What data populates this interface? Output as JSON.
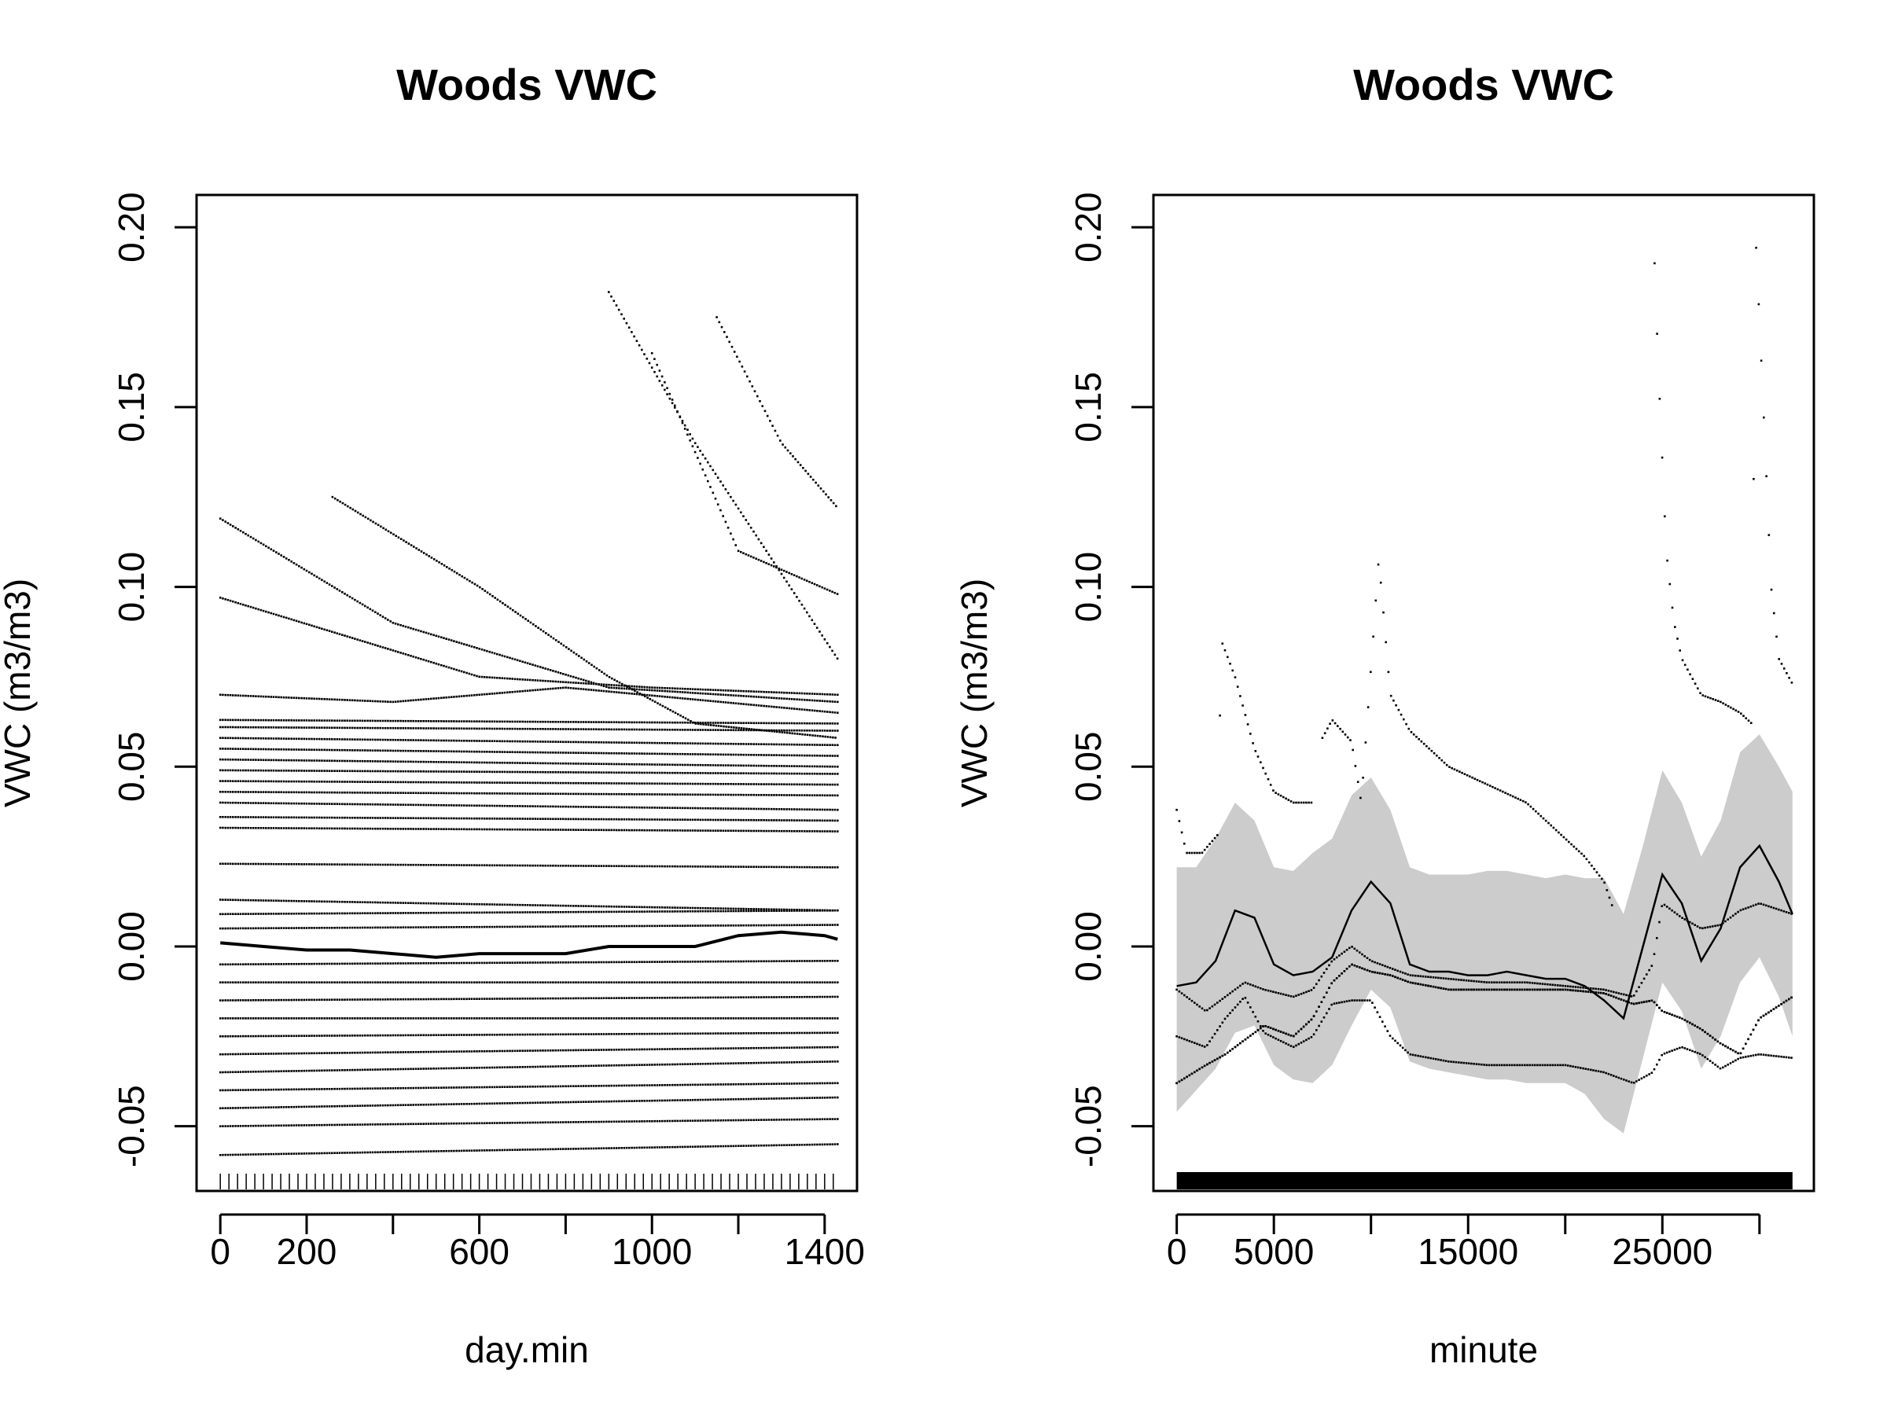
{
  "chart_data": [
    {
      "type": "scatter",
      "title": "Woods VWC",
      "xlabel": "day.min",
      "ylabel": "VWC (m3/m3)",
      "xlim": [
        -55,
        1475
      ],
      "ylim": [
        -0.068,
        0.209
      ],
      "x_ticks": [
        0,
        200,
        400,
        600,
        800,
        1000,
        1200,
        1400
      ],
      "x_tick_labels": [
        "0",
        "200",
        "",
        "600",
        "",
        "1000",
        "",
        "1400"
      ],
      "y_ticks": [
        -0.05,
        0.0,
        0.05,
        0.1,
        0.15,
        0.2
      ],
      "y_tick_labels": [
        "-0.05",
        "0.00",
        "0.05",
        "0.10",
        "0.15",
        "0.20"
      ],
      "rug": "x positions every 20 day.min along bottom",
      "smooth": {
        "x": [
          0,
          100,
          200,
          300,
          400,
          500,
          600,
          700,
          800,
          900,
          1000,
          1100,
          1200,
          1300,
          1400,
          1430
        ],
        "y": [
          0.001,
          0.0,
          -0.001,
          -0.001,
          -0.002,
          -0.003,
          -0.002,
          -0.002,
          -0.002,
          0.0,
          0.0,
          0.0,
          0.003,
          0.004,
          0.003,
          0.002
        ]
      },
      "series_lines": [
        {
          "x": [
            0,
            1430
          ],
          "y": [
            -0.058,
            -0.055
          ]
        },
        {
          "x": [
            0,
            1430
          ],
          "y": [
            -0.05,
            -0.048
          ]
        },
        {
          "x": [
            0,
            1430
          ],
          "y": [
            -0.045,
            -0.042
          ]
        },
        {
          "x": [
            0,
            1430
          ],
          "y": [
            -0.04,
            -0.038
          ]
        },
        {
          "x": [
            0,
            1430
          ],
          "y": [
            -0.035,
            -0.032
          ]
        },
        {
          "x": [
            0,
            1430
          ],
          "y": [
            -0.03,
            -0.028
          ]
        },
        {
          "x": [
            0,
            1430
          ],
          "y": [
            -0.025,
            -0.024
          ]
        },
        {
          "x": [
            0,
            1430
          ],
          "y": [
            -0.02,
            -0.02
          ]
        },
        {
          "x": [
            0,
            1430
          ],
          "y": [
            -0.015,
            -0.014
          ]
        },
        {
          "x": [
            0,
            1430
          ],
          "y": [
            -0.01,
            -0.01
          ]
        },
        {
          "x": [
            0,
            1430
          ],
          "y": [
            -0.005,
            -0.004
          ]
        },
        {
          "x": [
            0,
            1430
          ],
          "y": [
            0.005,
            0.006
          ]
        },
        {
          "x": [
            0,
            1430
          ],
          "y": [
            0.009,
            0.01
          ]
        },
        {
          "x": [
            0,
            1430
          ],
          "y": [
            0.013,
            0.01
          ]
        },
        {
          "x": [
            0,
            1430
          ],
          "y": [
            0.023,
            0.022
          ]
        },
        {
          "x": [
            0,
            1430
          ],
          "y": [
            0.033,
            0.032
          ]
        },
        {
          "x": [
            0,
            1430
          ],
          "y": [
            0.036,
            0.035
          ]
        },
        {
          "x": [
            0,
            1430
          ],
          "y": [
            0.04,
            0.038
          ]
        },
        {
          "x": [
            0,
            1430
          ],
          "y": [
            0.043,
            0.042
          ]
        },
        {
          "x": [
            0,
            1430
          ],
          "y": [
            0.046,
            0.045
          ]
        },
        {
          "x": [
            0,
            1430
          ],
          "y": [
            0.049,
            0.048
          ]
        },
        {
          "x": [
            0,
            1430
          ],
          "y": [
            0.052,
            0.05
          ]
        },
        {
          "x": [
            0,
            1430
          ],
          "y": [
            0.055,
            0.053
          ]
        },
        {
          "x": [
            0,
            1430
          ],
          "y": [
            0.058,
            0.056
          ]
        },
        {
          "x": [
            0,
            1430
          ],
          "y": [
            0.061,
            0.06
          ]
        },
        {
          "x": [
            0,
            1430
          ],
          "y": [
            0.063,
            0.062
          ]
        },
        {
          "x": [
            0,
            400,
            800,
            1430
          ],
          "y": [
            0.07,
            0.068,
            0.072,
            0.065
          ]
        },
        {
          "x": [
            0,
            600,
            1000,
            1430
          ],
          "y": [
            0.097,
            0.075,
            0.072,
            0.07
          ]
        },
        {
          "x": [
            0,
            400,
            900,
            1430
          ],
          "y": [
            0.119,
            0.09,
            0.072,
            0.068
          ]
        },
        {
          "x": [
            260,
            600,
            900,
            1100,
            1430
          ],
          "y": [
            0.125,
            0.1,
            0.075,
            0.062,
            0.058
          ]
        },
        {
          "x": [
            1150,
            1300,
            1430
          ],
          "y": [
            0.175,
            0.14,
            0.122
          ]
        },
        {
          "x": [
            1000,
            1200,
            1430
          ],
          "y": [
            0.165,
            0.11,
            0.098
          ]
        },
        {
          "x": [
            900,
            1100,
            1430
          ],
          "y": [
            0.182,
            0.14,
            0.08
          ]
        }
      ]
    },
    {
      "type": "scatter",
      "title": "Woods VWC",
      "xlabel": "minute",
      "ylabel": "VWC (m3/m3)",
      "xlim": [
        -1200,
        32800
      ],
      "ylim": [
        -0.068,
        0.209
      ],
      "x_ticks": [
        0,
        5000,
        10000,
        15000,
        20000,
        25000,
        30000
      ],
      "x_tick_labels": [
        "0",
        "5000",
        "",
        "15000",
        "",
        "25000",
        ""
      ],
      "y_ticks": [
        -0.05,
        0.0,
        0.05,
        0.1,
        0.15,
        0.2
      ],
      "y_tick_labels": [
        "-0.05",
        "0.00",
        "0.05",
        "0.10",
        "0.15",
        "0.20"
      ],
      "rug": "dense x positions from 0 to 31700",
      "smooth": {
        "x": [
          0,
          1000,
          2000,
          3000,
          4000,
          5000,
          6000,
          7000,
          8000,
          9000,
          10000,
          11000,
          12000,
          13000,
          14000,
          15000,
          16000,
          17000,
          18000,
          19000,
          20000,
          21000,
          22000,
          23000,
          24000,
          25000,
          26000,
          27000,
          28000,
          29000,
          30000,
          31000,
          31700
        ],
        "y": [
          -0.011,
          -0.01,
          -0.004,
          0.01,
          0.008,
          -0.005,
          -0.008,
          -0.007,
          -0.003,
          0.01,
          0.018,
          0.012,
          -0.005,
          -0.007,
          -0.007,
          -0.008,
          -0.008,
          -0.007,
          -0.008,
          -0.009,
          -0.009,
          -0.011,
          -0.015,
          -0.02,
          0.0,
          0.02,
          0.012,
          -0.004,
          0.005,
          0.022,
          0.028,
          0.018,
          0.009
        ]
      },
      "band_upper": [
        0.022,
        0.022,
        0.03,
        0.04,
        0.035,
        0.022,
        0.021,
        0.026,
        0.03,
        0.042,
        0.047,
        0.038,
        0.022,
        0.02,
        0.02,
        0.02,
        0.021,
        0.021,
        0.02,
        0.019,
        0.02,
        0.019,
        0.019,
        0.009,
        0.028,
        0.049,
        0.04,
        0.025,
        0.035,
        0.054,
        0.059,
        0.05,
        0.043
      ],
      "band_lower": [
        -0.046,
        -0.04,
        -0.034,
        -0.024,
        -0.022,
        -0.033,
        -0.037,
        -0.038,
        -0.033,
        -0.022,
        -0.012,
        -0.017,
        -0.032,
        -0.034,
        -0.035,
        -0.036,
        -0.037,
        -0.037,
        -0.038,
        -0.038,
        -0.038,
        -0.041,
        -0.048,
        -0.052,
        -0.031,
        -0.01,
        -0.018,
        -0.034,
        -0.025,
        -0.01,
        -0.003,
        -0.014,
        -0.025
      ],
      "series_lines": [
        {
          "x": [
            0,
            1500,
            2500,
            3500,
            4500,
            6000,
            7000,
            8000,
            9000,
            10000,
            11000,
            12000,
            14000,
            16000,
            18000,
            20000,
            22000,
            23500,
            24500,
            25000,
            26000,
            27000,
            28000,
            29000,
            30000,
            31700
          ],
          "y": [
            -0.025,
            -0.028,
            -0.02,
            -0.014,
            -0.024,
            -0.028,
            -0.025,
            -0.016,
            -0.015,
            -0.015,
            -0.025,
            -0.03,
            -0.032,
            -0.033,
            -0.033,
            -0.033,
            -0.035,
            -0.038,
            -0.035,
            -0.03,
            -0.028,
            -0.03,
            -0.034,
            -0.031,
            -0.03,
            -0.031
          ]
        },
        {
          "x": [
            0,
            1500,
            2500,
            3500,
            4500,
            6000,
            7000,
            8000,
            9000,
            10000,
            11000,
            12000,
            14000,
            16000,
            18000,
            20000,
            22000,
            23500,
            24500,
            25000,
            26000,
            27000,
            28000,
            29000,
            30000,
            31700
          ],
          "y": [
            -0.038,
            -0.033,
            -0.03,
            -0.026,
            -0.022,
            -0.025,
            -0.02,
            -0.01,
            -0.005,
            -0.007,
            -0.008,
            -0.01,
            -0.012,
            -0.012,
            -0.012,
            -0.012,
            -0.013,
            -0.016,
            -0.015,
            -0.018,
            -0.02,
            -0.023,
            -0.027,
            -0.03,
            -0.02,
            -0.014
          ]
        },
        {
          "x": [
            0,
            1500,
            2500,
            3500,
            4500,
            6000,
            7000,
            8000,
            9000,
            10000,
            11000,
            12000,
            14000,
            16000,
            18000,
            20000,
            22000,
            23500,
            24500,
            25000,
            26000,
            27000,
            28000,
            29000,
            30000,
            31700
          ],
          "y": [
            -0.038,
            -0.033,
            -0.03,
            -0.026,
            -0.022,
            -0.025,
            -0.02,
            -0.01,
            -0.005,
            -0.007,
            -0.008,
            -0.01,
            -0.012,
            -0.012,
            -0.012,
            -0.012,
            -0.013,
            -0.016,
            -0.015,
            -0.018,
            -0.02,
            -0.023,
            -0.027,
            -0.03,
            -0.02,
            -0.014
          ]
        },
        {
          "x": [
            0,
            500,
            1300,
            2100,
            2300,
            3000,
            4000,
            5000,
            6000,
            7000
          ],
          "y": [
            0.038,
            0.026,
            0.026,
            0.031,
            0.085,
            0.075,
            0.055,
            0.043,
            0.04,
            0.04
          ]
        },
        {
          "x": [
            7500,
            8000,
            9000,
            9500,
            10100,
            10400,
            11000,
            12000,
            14000,
            16000,
            18000,
            20000,
            21000,
            22000,
            22500
          ],
          "y": [
            0.058,
            0.063,
            0.057,
            0.04,
            0.085,
            0.108,
            0.07,
            0.06,
            0.05,
            0.045,
            0.04,
            0.03,
            0.025,
            0.018,
            0.01
          ]
        },
        {
          "x": [
            24600,
            24800,
            25200,
            25600,
            26000,
            27000,
            28000,
            29000,
            29600,
            29800,
            30200,
            30600,
            31000,
            31700
          ],
          "y": [
            0.19,
            0.16,
            0.11,
            0.09,
            0.08,
            0.07,
            0.068,
            0.065,
            0.062,
            0.198,
            0.15,
            0.1,
            0.08,
            0.073
          ]
        },
        {
          "x": [
            0,
            1500,
            2500,
            3500,
            4500,
            6000,
            7000,
            8000,
            9000,
            10000,
            11000,
            12000,
            14000,
            16000,
            18000,
            20000,
            22000,
            23500,
            24500,
            25000,
            26000,
            27000,
            28000,
            29000,
            30000,
            31700
          ],
          "y": [
            -0.012,
            -0.018,
            -0.014,
            -0.01,
            -0.012,
            -0.014,
            -0.012,
            -0.004,
            0.0,
            -0.004,
            -0.006,
            -0.008,
            -0.009,
            -0.01,
            -0.01,
            -0.011,
            -0.012,
            -0.014,
            -0.005,
            0.012,
            0.008,
            0.005,
            0.006,
            0.01,
            0.012,
            0.009
          ]
        }
      ]
    }
  ]
}
